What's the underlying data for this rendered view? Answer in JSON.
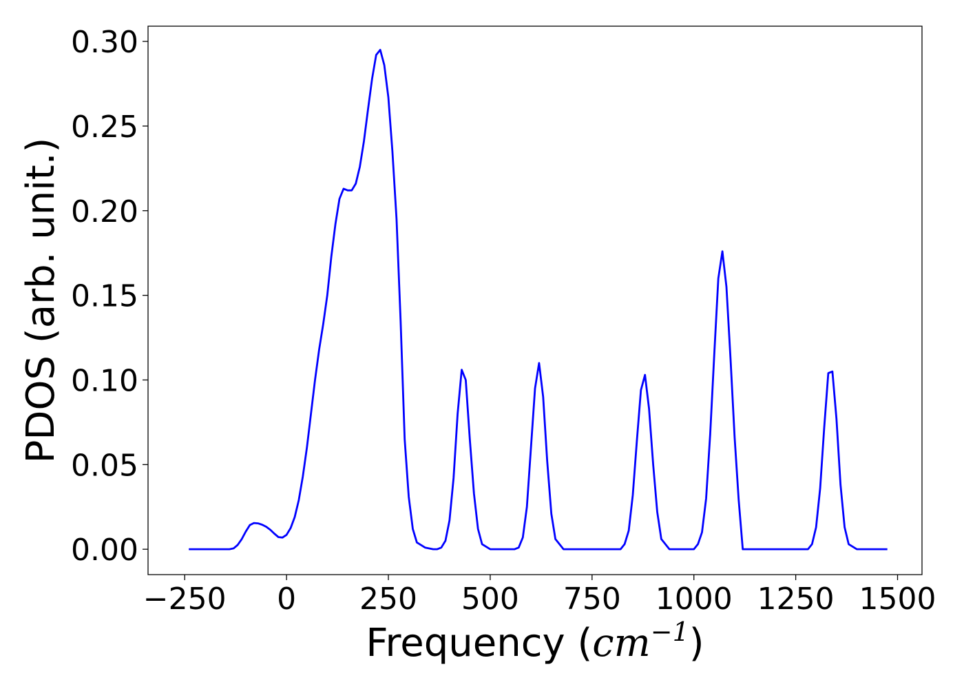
{
  "chart_data": {
    "type": "line",
    "xlabel": "Frequency",
    "xlabel_unit": "cm",
    "xlabel_unit_exponent": "−1",
    "ylabel": "PDOS (arb. unit.)",
    "xlim": [
      -340,
      1560
    ],
    "ylim": [
      -0.015,
      0.309
    ],
    "xticks": [
      -250,
      0,
      250,
      500,
      750,
      1000,
      1250,
      1500
    ],
    "xtick_labels": [
      "−250",
      "0",
      "250",
      "500",
      "750",
      "1000",
      "1250",
      "1500"
    ],
    "yticks": [
      0.0,
      0.05,
      0.1,
      0.15,
      0.2,
      0.25,
      0.3
    ],
    "ytick_labels": [
      "0.00",
      "0.05",
      "0.10",
      "0.15",
      "0.20",
      "0.25",
      "0.30"
    ],
    "grid": false,
    "series": [
      {
        "color": "#0000ff",
        "x": [
          -240,
          -140,
          -130,
          -120,
          -110,
          -100,
          -90,
          -80,
          -70,
          -60,
          -50,
          -40,
          -30,
          -20,
          -10,
          0,
          10,
          20,
          30,
          40,
          50,
          60,
          70,
          80,
          90,
          100,
          110,
          120,
          130,
          140,
          150,
          160,
          170,
          180,
          190,
          200,
          210,
          220,
          230,
          240,
          250,
          260,
          270,
          280,
          290,
          300,
          310,
          320,
          340,
          360,
          370,
          380,
          390,
          400,
          410,
          420,
          430,
          440,
          450,
          460,
          470,
          480,
          500,
          540,
          560,
          570,
          580,
          590,
          600,
          610,
          620,
          630,
          640,
          650,
          660,
          680,
          800,
          820,
          830,
          840,
          850,
          860,
          870,
          880,
          890,
          900,
          910,
          920,
          940,
          980,
          1000,
          1010,
          1020,
          1030,
          1040,
          1050,
          1060,
          1070,
          1080,
          1090,
          1100,
          1110,
          1120,
          1140,
          1260,
          1280,
          1290,
          1300,
          1310,
          1320,
          1330,
          1340,
          1350,
          1360,
          1370,
          1380,
          1400,
          1475
        ],
        "y": [
          0.0,
          0.0,
          0.0005,
          0.0025,
          0.006,
          0.0105,
          0.0143,
          0.0155,
          0.0153,
          0.0145,
          0.0133,
          0.0115,
          0.0092,
          0.0072,
          0.0069,
          0.0085,
          0.0125,
          0.019,
          0.029,
          0.043,
          0.06,
          0.08,
          0.1,
          0.118,
          0.133,
          0.15,
          0.173,
          0.192,
          0.207,
          0.213,
          0.212,
          0.212,
          0.216,
          0.226,
          0.241,
          0.26,
          0.278,
          0.292,
          0.295,
          0.286,
          0.267,
          0.235,
          0.195,
          0.135,
          0.065,
          0.031,
          0.012,
          0.004,
          0.001,
          0.0,
          0.0,
          0.001,
          0.005,
          0.017,
          0.042,
          0.08,
          0.106,
          0.1,
          0.065,
          0.033,
          0.012,
          0.003,
          0.0,
          0.0,
          0.0,
          0.001,
          0.007,
          0.025,
          0.06,
          0.095,
          0.11,
          0.09,
          0.052,
          0.021,
          0.006,
          0.0,
          0.0,
          0.0,
          0.003,
          0.011,
          0.032,
          0.064,
          0.094,
          0.103,
          0.083,
          0.05,
          0.022,
          0.006,
          0.0,
          0.0,
          0.0,
          0.003,
          0.01,
          0.03,
          0.068,
          0.115,
          0.16,
          0.176,
          0.155,
          0.112,
          0.066,
          0.029,
          0.0,
          0.0,
          0.0,
          0.0,
          0.003,
          0.013,
          0.036,
          0.072,
          0.104,
          0.105,
          0.077,
          0.038,
          0.013,
          0.003,
          0.0,
          0.0
        ]
      }
    ]
  }
}
